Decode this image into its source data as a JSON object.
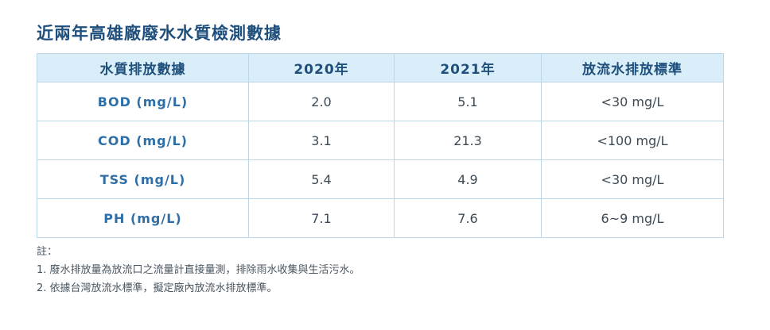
{
  "title": "近兩年高雄廠廢水水質檢測數據",
  "table": {
    "headers": [
      "水質排放數據",
      "2020年",
      "2021年",
      "放流水排放標準"
    ],
    "rows": [
      {
        "param": "BOD (mg/L)",
        "y2020": "2.0",
        "y2021": "5.1",
        "standard": "<30 mg/L"
      },
      {
        "param": "COD (mg/L)",
        "y2020": "3.1",
        "y2021": "21.3",
        "standard": "<100 mg/L"
      },
      {
        "param": "TSS (mg/L)",
        "y2020": "5.4",
        "y2021": "4.9",
        "standard": "<30 mg/L"
      },
      {
        "param": "PH (mg/L)",
        "y2020": "7.1",
        "y2021": "7.6",
        "standard": "6~9 mg/L"
      }
    ]
  },
  "notes": {
    "heading": "註：",
    "items": [
      "1. 廢水排放量為放流口之流量計直接量測，排除雨水收集與生活污水。",
      "2. 依據台灣放流水標準，擬定廠內放流水排放標準。"
    ]
  },
  "colors": {
    "title": "#1f4f7c",
    "header_bg": "#d9eef8",
    "border": "#bcd7e8",
    "param_text": "#2f6fa8"
  }
}
